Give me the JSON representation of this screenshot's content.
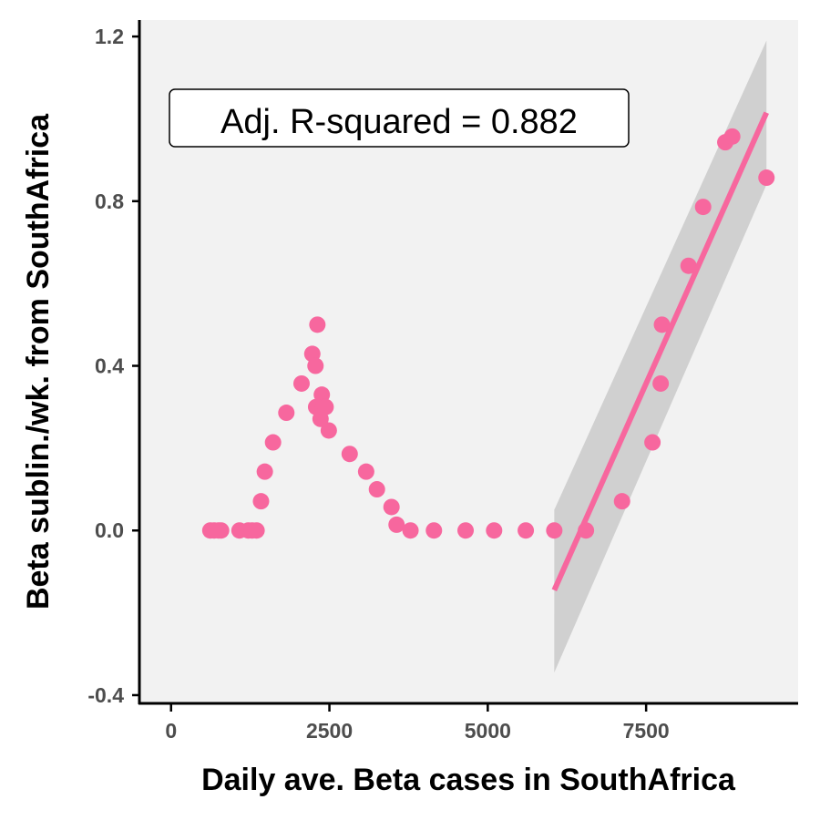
{
  "chart_data": {
    "type": "scatter",
    "xlabel": "Daily ave. Beta cases in SouthAfrica",
    "ylabel": "Beta sublin./wk. from SouthAfrica",
    "xlim": [
      -500,
      9900
    ],
    "ylim": [
      -0.42,
      1.24
    ],
    "xticks": [
      0,
      2500,
      5000,
      7500
    ],
    "xtick_labels": [
      "0",
      "2500",
      "5000",
      "7500"
    ],
    "yticks": [
      -0.4,
      0.0,
      0.4,
      0.8,
      1.2
    ],
    "ytick_labels": [
      "-0.4",
      "0.0",
      "0.4",
      "0.8",
      "1.2"
    ],
    "grid": false,
    "annotation": "Adj. R-squared = 0.882",
    "colors": {
      "points": "#f7679e",
      "fit_line": "#f7679e",
      "confidence_band": "#bdbdbd",
      "panel_background": "#f2f2f2"
    },
    "points": {
      "x": [
        620,
        680,
        750,
        790,
        1080,
        1220,
        1280,
        1350,
        1420,
        1480,
        1610,
        1820,
        2060,
        2230,
        2280,
        2290,
        2310,
        2360,
        2380,
        2400,
        2440,
        2490,
        2820,
        3080,
        3250,
        3480,
        3560,
        3780,
        4150,
        4650,
        5100,
        5600,
        6050,
        6550,
        7120,
        7600,
        7730,
        7750,
        8170,
        8400,
        8750,
        8860,
        9400
      ],
      "y": [
        0.0,
        0.0,
        0.0,
        0.0,
        0.0,
        0.0,
        0.0,
        0.0,
        0.071,
        0.143,
        0.214,
        0.286,
        0.357,
        0.429,
        0.4,
        0.3,
        0.5,
        0.271,
        0.33,
        0.3,
        0.3,
        0.243,
        0.186,
        0.143,
        0.1,
        0.057,
        0.014,
        0.0,
        0.0,
        0.0,
        0.0,
        0.0,
        0.0,
        0.0,
        0.071,
        0.214,
        0.357,
        0.5,
        0.643,
        0.786,
        0.943,
        0.957,
        0.857
      ]
    },
    "fit": {
      "type": "linear",
      "x": [
        6050,
        9400
      ],
      "y": [
        -0.145,
        1.015
      ],
      "band_upper": [
        0.05,
        1.19
      ],
      "band_lower": [
        -0.345,
        0.84
      ]
    }
  }
}
